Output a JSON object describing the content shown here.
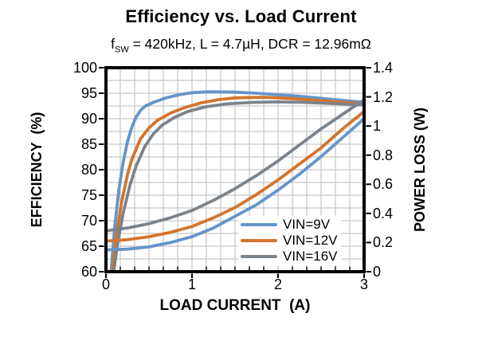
{
  "title": "Efficiency vs. Load Current",
  "subtitle": {
    "prefix": "f",
    "sub": "SW",
    "rest": " = 420kHz, L = 4.7µH, DCR = 12.96mΩ"
  },
  "chart_data": {
    "type": "line",
    "title": "Efficiency vs. Load Current",
    "subtitle_plain": "fSW = 420kHz, L = 4.7µH, DCR = 12.96mΩ",
    "xlabel": "LOAD CURRENT  (A)",
    "ylabel_left": "EFFICIENCY  (%)",
    "ylabel_right": "POWER LOSS (W)",
    "x_range": [
      0,
      3
    ],
    "x_ticks": [
      "0",
      "1",
      "2",
      "3"
    ],
    "x_minor_step": 0.16667,
    "y_left_range": [
      60,
      100
    ],
    "y_left_ticks": [
      "100",
      "95",
      "90",
      "85",
      "80",
      "75",
      "70",
      "65",
      "60"
    ],
    "y_left_minor_step": 2.5,
    "y_right_range": [
      0,
      1.4
    ],
    "y_right_ticks": [
      "1.4",
      "1.2",
      "1",
      "0.8",
      "0.6",
      "0.4",
      "0.2",
      "0"
    ],
    "grid": true,
    "grid_color": "#c6c6c6",
    "frame_color": "#000000",
    "legend": {
      "position": "inside-bottom-right",
      "entries": [
        {
          "label": "VIN=9V",
          "color": "#6395c9"
        },
        {
          "label": "VIN=12V",
          "color": "#d4742c"
        },
        {
          "label": "VIN=16V",
          "color": "#7b838c"
        }
      ]
    },
    "series": [
      {
        "name": "VIN=9V efficiency",
        "axis": "left",
        "color": "#6395c9",
        "points": [
          [
            0.06,
            60
          ],
          [
            0.1,
            68.5
          ],
          [
            0.15,
            76
          ],
          [
            0.2,
            81.5
          ],
          [
            0.25,
            85.5
          ],
          [
            0.3,
            88.3
          ],
          [
            0.35,
            90.3
          ],
          [
            0.4,
            91.6
          ],
          [
            0.45,
            92.4
          ],
          [
            0.55,
            93.2
          ],
          [
            0.7,
            94.1
          ],
          [
            0.85,
            94.7
          ],
          [
            1,
            95.1
          ],
          [
            1.2,
            95.3
          ],
          [
            1.5,
            95.2
          ],
          [
            1.75,
            95
          ],
          [
            2,
            94.7
          ],
          [
            2.25,
            94.4
          ],
          [
            2.5,
            94
          ],
          [
            2.75,
            93.6
          ],
          [
            3,
            93.2
          ]
        ]
      },
      {
        "name": "VIN=12V efficiency",
        "axis": "left",
        "color": "#d4742c",
        "points": [
          [
            0.07,
            60
          ],
          [
            0.12,
            67
          ],
          [
            0.18,
            73.5
          ],
          [
            0.25,
            79
          ],
          [
            0.3,
            82
          ],
          [
            0.4,
            86
          ],
          [
            0.5,
            88.2
          ],
          [
            0.6,
            89.7
          ],
          [
            0.75,
            91.1
          ],
          [
            0.9,
            92.1
          ],
          [
            1.1,
            93.1
          ],
          [
            1.3,
            93.7
          ],
          [
            1.5,
            94.1
          ],
          [
            1.8,
            94.2
          ],
          [
            2,
            94.1
          ],
          [
            2.3,
            93.8
          ],
          [
            2.6,
            93.4
          ],
          [
            3,
            92.9
          ]
        ]
      },
      {
        "name": "VIN=16V efficiency",
        "axis": "left",
        "color": "#7b838c",
        "points": [
          [
            0.09,
            60
          ],
          [
            0.14,
            66
          ],
          [
            0.2,
            71.5
          ],
          [
            0.28,
            77
          ],
          [
            0.35,
            80.7
          ],
          [
            0.45,
            84.5
          ],
          [
            0.55,
            87
          ],
          [
            0.65,
            88.7
          ],
          [
            0.8,
            90.3
          ],
          [
            0.95,
            91.4
          ],
          [
            1.15,
            92.3
          ],
          [
            1.4,
            92.9
          ],
          [
            1.7,
            93.2
          ],
          [
            2,
            93.3
          ],
          [
            2.3,
            93.2
          ],
          [
            2.6,
            93
          ],
          [
            3,
            92.7
          ]
        ]
      },
      {
        "name": "VIN=9V power loss",
        "axis": "right",
        "color": "#6395c9",
        "points": [
          [
            0,
            0.15
          ],
          [
            0.25,
            0.155
          ],
          [
            0.5,
            0.17
          ],
          [
            0.75,
            0.2
          ],
          [
            1,
            0.24
          ],
          [
            1.25,
            0.3
          ],
          [
            1.5,
            0.38
          ],
          [
            1.75,
            0.46
          ],
          [
            2,
            0.56
          ],
          [
            2.25,
            0.67
          ],
          [
            2.5,
            0.79
          ],
          [
            2.75,
            0.92
          ],
          [
            3,
            1.05
          ]
        ]
      },
      {
        "name": "VIN=12V power loss",
        "axis": "right",
        "color": "#d4742c",
        "points": [
          [
            0,
            0.21
          ],
          [
            0.25,
            0.22
          ],
          [
            0.5,
            0.24
          ],
          [
            0.75,
            0.27
          ],
          [
            1,
            0.31
          ],
          [
            1.25,
            0.37
          ],
          [
            1.5,
            0.44
          ],
          [
            1.75,
            0.53
          ],
          [
            2,
            0.63
          ],
          [
            2.25,
            0.74
          ],
          [
            2.5,
            0.85
          ],
          [
            2.75,
            0.98
          ],
          [
            3,
            1.1
          ]
        ]
      },
      {
        "name": "VIN=16V power loss",
        "axis": "right",
        "color": "#7b838c",
        "points": [
          [
            0,
            0.28
          ],
          [
            0.25,
            0.3
          ],
          [
            0.5,
            0.33
          ],
          [
            0.75,
            0.37
          ],
          [
            1,
            0.42
          ],
          [
            1.25,
            0.49
          ],
          [
            1.5,
            0.57
          ],
          [
            1.75,
            0.66
          ],
          [
            2,
            0.76
          ],
          [
            2.25,
            0.87
          ],
          [
            2.5,
            0.98
          ],
          [
            2.75,
            1.08
          ],
          [
            3,
            1.18
          ]
        ]
      }
    ]
  }
}
